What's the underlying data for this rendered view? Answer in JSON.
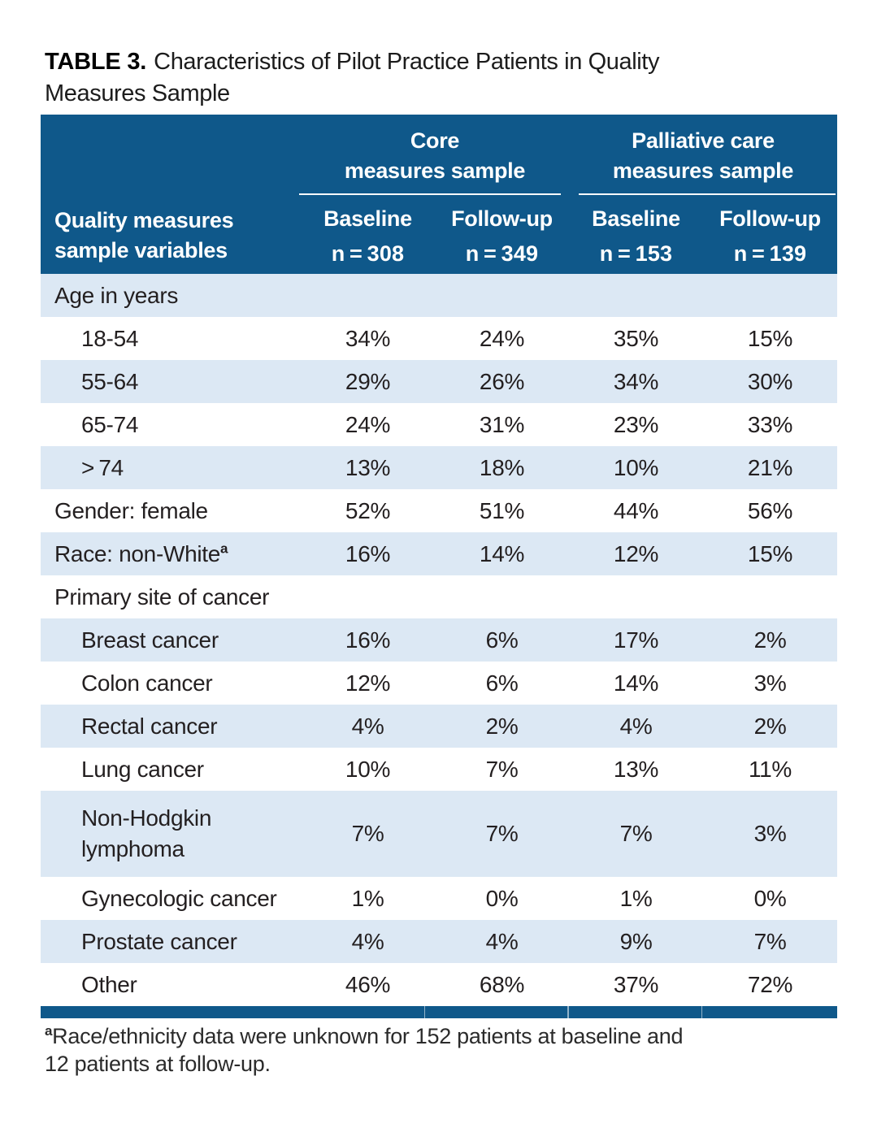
{
  "title": {
    "bold": "TABLE 3.",
    "line1_rest": "Characteristics of Pilot Practice Patients in Quality",
    "line2": "Measures Sample"
  },
  "colors": {
    "header_blue": "#0F588A",
    "stripe_blue": "#DCE8F4"
  },
  "table": {
    "header": {
      "stub": {
        "line1": "Quality measures",
        "line2": "sample variables"
      },
      "groups": [
        {
          "title_line1": "Core",
          "title_line2": "measures sample",
          "columns": [
            {
              "label": "Baseline",
              "n": "n = 308"
            },
            {
              "label": "Follow-up",
              "n": "n = 349"
            }
          ]
        },
        {
          "title_line1": "Palliative care",
          "title_line2": "measures sample",
          "columns": [
            {
              "label": "Baseline",
              "n": "n = 153"
            },
            {
              "label": "Follow-up",
              "n": "n = 139"
            }
          ]
        }
      ]
    },
    "rows": [
      {
        "label": "Age in years",
        "section": true
      },
      {
        "label": "18-54",
        "indent": true,
        "values": [
          "34%",
          "24%",
          "35%",
          "15%"
        ]
      },
      {
        "label": "55-64",
        "indent": true,
        "values": [
          "29%",
          "26%",
          "34%",
          "30%"
        ]
      },
      {
        "label": "65-74",
        "indent": true,
        "values": [
          "24%",
          "31%",
          "23%",
          "33%"
        ]
      },
      {
        "label": "> 74",
        "indent": true,
        "values": [
          "13%",
          "18%",
          "10%",
          "21%"
        ]
      },
      {
        "label": "Gender: female",
        "values": [
          "52%",
          "51%",
          "44%",
          "56%"
        ]
      },
      {
        "label": "Race: non-White",
        "sup": "a",
        "values": [
          "16%",
          "14%",
          "12%",
          "15%"
        ]
      },
      {
        "label": "Primary site of cancer",
        "section": true
      },
      {
        "label": "Breast cancer",
        "indent": true,
        "values": [
          "16%",
          "6%",
          "17%",
          "2%"
        ]
      },
      {
        "label": "Colon cancer",
        "indent": true,
        "values": [
          "12%",
          "6%",
          "14%",
          "3%"
        ]
      },
      {
        "label": "Rectal cancer",
        "indent": true,
        "values": [
          "4%",
          "2%",
          "4%",
          "2%"
        ]
      },
      {
        "label": "Lung cancer",
        "indent": true,
        "values": [
          "10%",
          "7%",
          "13%",
          "11%"
        ]
      },
      {
        "label": "Non-Hodgkin lymphoma",
        "indent": true,
        "tall": true,
        "values": [
          "7%",
          "7%",
          "7%",
          "3%"
        ]
      },
      {
        "label": "Gynecologic cancer",
        "indent": true,
        "values": [
          "1%",
          "0%",
          "1%",
          "0%"
        ]
      },
      {
        "label": "Prostate cancer",
        "indent": true,
        "values": [
          "4%",
          "4%",
          "9%",
          "7%"
        ]
      },
      {
        "label": "Other",
        "indent": true,
        "values": [
          "46%",
          "68%",
          "37%",
          "72%"
        ]
      }
    ]
  },
  "footnote": {
    "sup": "a",
    "line1": "Race/ethnicity data were unknown for 152 patients at baseline and",
    "line2": "12 patients at follow-up."
  }
}
